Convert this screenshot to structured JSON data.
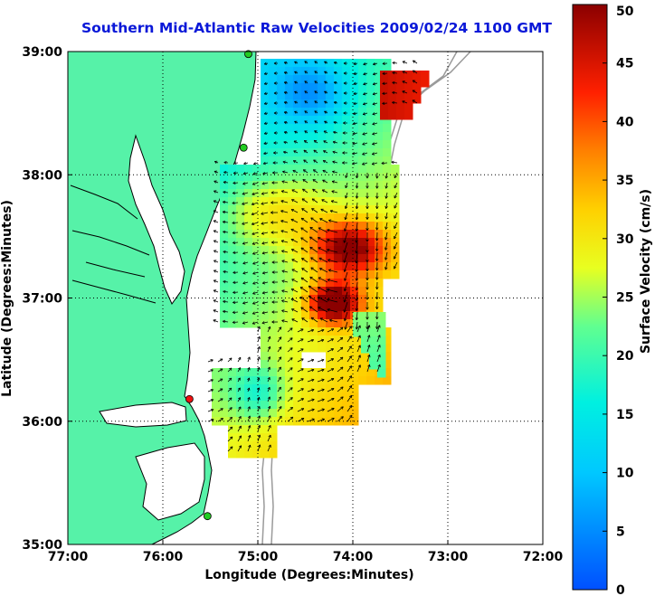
{
  "title": "Southern Mid-Atlantic Raw Velocities 2009/02/24 1100 GMT",
  "xlabel": "Longitude (Degrees:Minutes)",
  "ylabel": "Latitude (Degrees:Minutes)",
  "colorbar": {
    "label": "Surface Velocity (cm/s)",
    "min": 0,
    "max": 50,
    "ticks": [
      "0",
      "5",
      "10",
      "15",
      "20",
      "25",
      "30",
      "35",
      "40",
      "45",
      "50"
    ],
    "tick_values": [
      0,
      5,
      10,
      15,
      20,
      25,
      30,
      35,
      40,
      45,
      50
    ]
  },
  "axes": {
    "lon_ticks": [
      "77:00",
      "76:00",
      "75:00",
      "74:00",
      "73:00",
      "72:00"
    ],
    "lon_values": [
      -77,
      -76,
      -75,
      -74,
      -73,
      -72
    ],
    "lat_ticks": [
      "39:00",
      "38:00",
      "37:00",
      "36:00",
      "35:00"
    ],
    "lat_values": [
      39,
      38,
      37,
      36,
      35
    ],
    "lon_range": [
      -77,
      -72
    ],
    "lat_range": [
      35,
      39
    ],
    "grid": "dotted"
  },
  "colors": {
    "land": "#56f2a8",
    "coast": "#000000",
    "title": "#0a18d8",
    "bathymetry": "#9a9a9a",
    "site_active": "#22cc22",
    "site_inactive": "#ee1111"
  },
  "stations": [
    {
      "lon": -75.1,
      "lat": 38.98,
      "status": "active"
    },
    {
      "lon": -75.15,
      "lat": 38.22,
      "status": "active"
    },
    {
      "lon": -75.72,
      "lat": 36.18,
      "status": "inactive"
    },
    {
      "lon": -75.53,
      "lat": 35.23,
      "status": "active"
    }
  ]
}
